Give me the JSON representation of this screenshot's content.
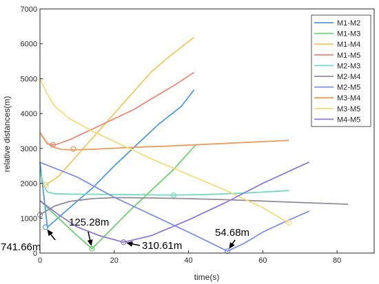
{
  "chart_data": {
    "type": "line",
    "title": "",
    "xlabel": "time(s)",
    "ylabel": "relative distances(m)",
    "xlim": [
      0,
      90
    ],
    "ylim": [
      0,
      7000
    ],
    "xticks": [
      0,
      20,
      40,
      60,
      80
    ],
    "yticks": [
      0,
      1000,
      2000,
      3000,
      4000,
      5000,
      6000,
      7000
    ],
    "grid": false,
    "legend_position": "top-right",
    "series": [
      {
        "name": "M1-M2",
        "color": "#4f9ae6",
        "x": [
          0,
          2,
          8,
          14,
          20,
          26,
          32,
          38,
          41.5
        ],
        "y": [
          2600,
          740,
          1300,
          1850,
          2500,
          3100,
          3700,
          4200,
          4680
        ],
        "marker": {
          "x": 1.5,
          "y": 741.66
        }
      },
      {
        "name": "M1-M3",
        "color": "#6bd26b",
        "x": [
          0,
          5,
          10,
          14,
          18,
          24,
          30,
          36,
          42
        ],
        "y": [
          1500,
          1000,
          500,
          125.28,
          550,
          1200,
          1800,
          2400,
          3110
        ],
        "marker": {
          "x": 14,
          "y": 125.28
        }
      },
      {
        "name": "M1-M4",
        "color": "#f4c85a",
        "x": [
          1.5,
          5,
          10,
          15,
          20,
          25,
          30,
          35,
          41.5
        ],
        "y": [
          1950,
          2200,
          2800,
          3400,
          4000,
          4600,
          5200,
          5650,
          6190
        ],
        "marker": {
          "x": 1.5,
          "y": 1950
        }
      },
      {
        "name": "M1-M5",
        "color": "#f08878",
        "x": [
          0,
          2,
          4,
          8,
          12,
          16,
          20,
          25,
          30,
          36,
          41.5
        ],
        "y": [
          3450,
          3130,
          3100,
          3250,
          3450,
          3650,
          3850,
          4100,
          4420,
          4800,
          5180
        ],
        "marker": {
          "x": 3.5,
          "y": 3100
        }
      },
      {
        "name": "M2-M3",
        "color": "#6fdcbf",
        "x": [
          0,
          1,
          2,
          4,
          8,
          20,
          30,
          36,
          45,
          55,
          67
        ],
        "y": [
          2350,
          1950,
          1750,
          1700,
          1690,
          1680,
          1670,
          1660,
          1680,
          1720,
          1790
        ],
        "marker": {
          "x": 36,
          "y": 1660
        }
      },
      {
        "name": "M2-M4",
        "color": "#8e8a9a",
        "x": [
          0,
          4,
          8,
          14,
          20,
          30,
          40,
          50,
          60,
          70,
          83
        ],
        "y": [
          1100,
          1350,
          1480,
          1560,
          1590,
          1580,
          1560,
          1530,
          1490,
          1450,
          1400
        ],
        "marker": {
          "x": 0,
          "y": 1100
        }
      },
      {
        "name": "M2-M5",
        "color": "#7f8fe6",
        "x": [
          0,
          10,
          20,
          30,
          40,
          50.5,
          55,
          60,
          66,
          72.5
        ],
        "y": [
          2600,
          2180,
          1600,
          1100,
          600,
          54.68,
          280,
          600,
          900,
          1200
        ],
        "marker": {
          "x": 50.5,
          "y": 54.68
        }
      },
      {
        "name": "M3-M4",
        "color": "#ef9a55",
        "x": [
          0,
          2,
          4,
          6,
          9,
          15,
          25,
          35,
          45,
          55,
          67
        ],
        "y": [
          3450,
          3150,
          3020,
          2970,
          2960,
          2980,
          3030,
          3070,
          3120,
          3170,
          3230
        ],
        "marker": {
          "x": 9,
          "y": 2980
        }
      },
      {
        "name": "M3-M5",
        "color": "#f5dc78",
        "x": [
          0,
          2,
          4,
          8,
          14,
          20,
          30,
          40,
          50,
          60,
          67
        ],
        "y": [
          5000,
          4550,
          4200,
          3850,
          3500,
          3200,
          2700,
          2250,
          1800,
          1300,
          870
        ],
        "marker": {
          "x": 67,
          "y": 870
        }
      },
      {
        "name": "M4-M5",
        "color": "#8d78d8",
        "x": [
          0,
          5,
          10,
          16,
          22.5,
          30,
          40,
          50,
          60,
          72.5
        ],
        "y": [
          1500,
          1100,
          750,
          500,
          310.61,
          500,
          950,
          1450,
          2000,
          2610
        ],
        "marker": {
          "x": 22.5,
          "y": 310.61
        }
      }
    ],
    "annotations": [
      {
        "text": "741.66m",
        "x": 1.5,
        "y": 741.66
      },
      {
        "text": "125.28m",
        "x": 14,
        "y": 125.28
      },
      {
        "text": "310.61m",
        "x": 22.5,
        "y": 310.61
      },
      {
        "text": "54.68m",
        "x": 50.5,
        "y": 54.68
      }
    ]
  }
}
